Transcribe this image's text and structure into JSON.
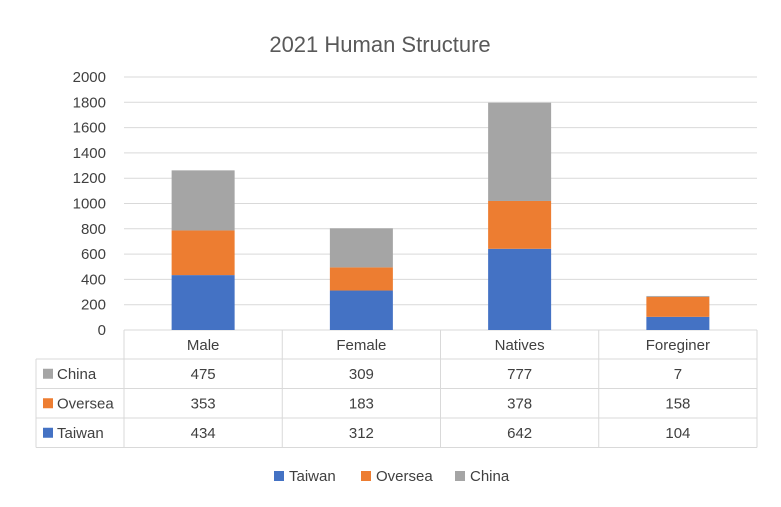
{
  "chart_data": {
    "type": "bar",
    "stacked": true,
    "title": "2021 Human Structure",
    "categories": [
      "Male",
      "Female",
      "Natives",
      "Foreginer"
    ],
    "series": [
      {
        "name": "Taiwan",
        "color": "#4472c4",
        "values": [
          434,
          312,
          642,
          104
        ]
      },
      {
        "name": "Oversea",
        "color": "#ed7d31",
        "values": [
          353,
          183,
          378,
          158
        ]
      },
      {
        "name": "China",
        "color": "#a5a5a5",
        "values": [
          475,
          309,
          777,
          7
        ]
      }
    ],
    "data_table_order": [
      "China",
      "Oversea",
      "Taiwan"
    ],
    "ylim": [
      0,
      2000
    ],
    "yticks": [
      0,
      200,
      400,
      600,
      800,
      1000,
      1200,
      1400,
      1600,
      1800,
      2000
    ],
    "grid": true,
    "legend": "bottom",
    "data_table": true
  }
}
